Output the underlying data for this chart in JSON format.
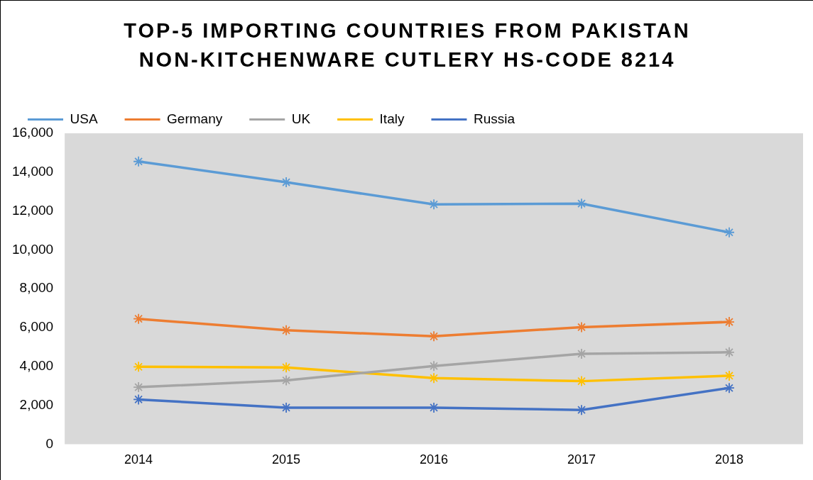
{
  "chart_data": {
    "type": "line",
    "title": "TOP-5 IMPORTING COUNTRIES FROM PAKISTAN NON-KITCHENWARE CUTLERY HS-CODE 8214",
    "categories": [
      "2014",
      "2015",
      "2016",
      "2017",
      "2018"
    ],
    "series": [
      {
        "name": "USA",
        "color": "#5b9bd5",
        "values": [
          14550,
          13480,
          12340,
          12380,
          10900
        ]
      },
      {
        "name": "Germany",
        "color": "#ed7d31",
        "values": [
          6450,
          5860,
          5550,
          6020,
          6290
        ]
      },
      {
        "name": "UK",
        "color": "#a5a5a5",
        "values": [
          2930,
          3280,
          4020,
          4650,
          4730
        ]
      },
      {
        "name": "Italy",
        "color": "#ffc000",
        "values": [
          3980,
          3950,
          3400,
          3240,
          3520
        ]
      },
      {
        "name": "Russia",
        "color": "#4472c4",
        "values": [
          2300,
          1880,
          1880,
          1760,
          2890
        ]
      }
    ],
    "ylim": [
      0,
      16000
    ],
    "yticks": [
      0,
      {
        "value": 2000,
        "label": "2,000"
      },
      {
        "value": 4000,
        "label": "4,000"
      },
      {
        "value": 6000,
        "label": "6,000"
      },
      {
        "value": 8000,
        "label": "8,000"
      },
      {
        "value": 10000,
        "label": "10,000"
      },
      {
        "value": 12000,
        "label": "12,000"
      },
      {
        "value": 14000,
        "label": "14,000"
      },
      {
        "value": 16000,
        "label": "16,000"
      }
    ],
    "grid": false,
    "legend": "top",
    "marker": "cross",
    "line_style": "solid"
  }
}
